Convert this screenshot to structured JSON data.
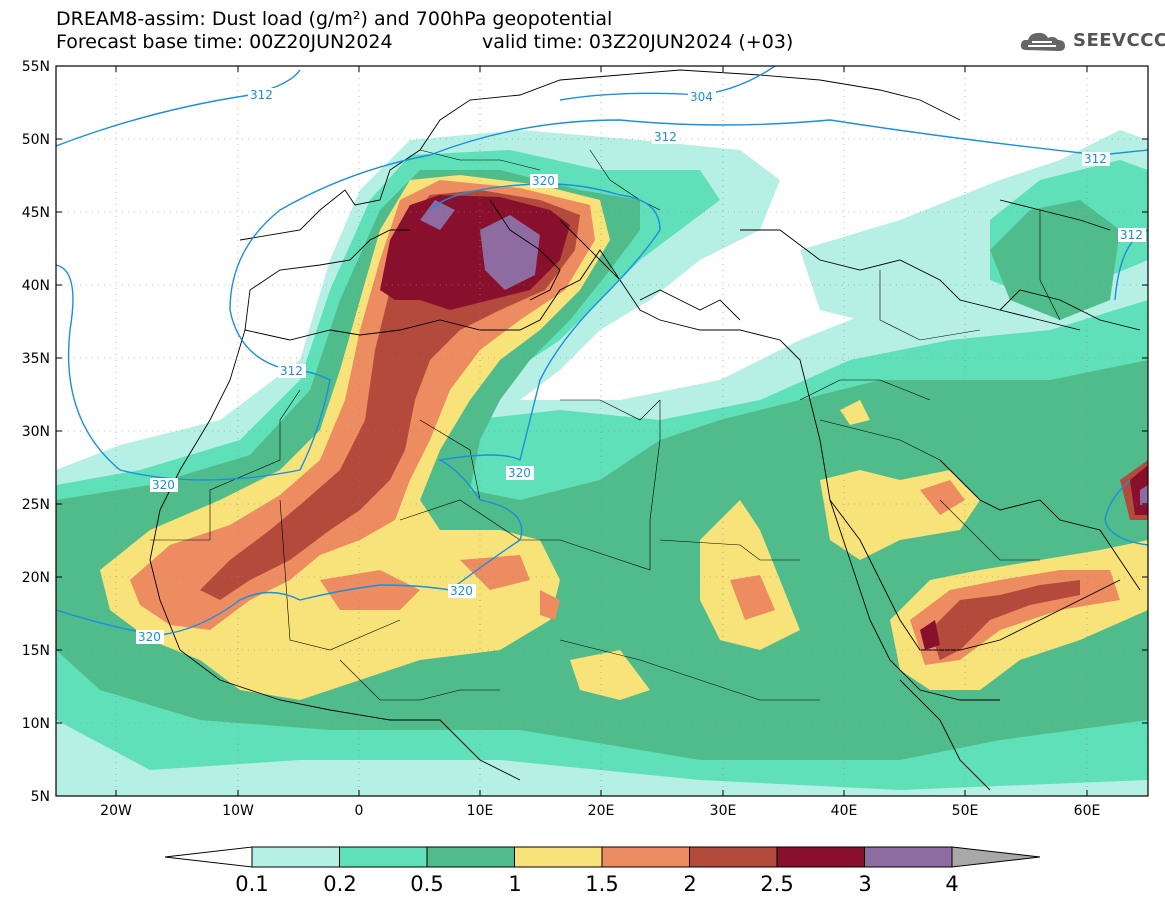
{
  "title_line1": "DREAM8-assim: Dust load (g/m²) and 700hPa geopotential",
  "title_line2": "Forecast base time: 00Z20JUN2024",
  "valid_time": "valid time: 03Z20JUN2024 (+03)",
  "logo": {
    "text": "SEEVCCC",
    "icon": "cloud-logo-icon"
  },
  "map": {
    "lat_labels": [
      "55N",
      "50N",
      "45N",
      "40N",
      "35N",
      "30N",
      "25N",
      "20N",
      "15N",
      "10N",
      "5N"
    ],
    "lon_labels": [
      "20W",
      "10W",
      "0",
      "10E",
      "20E",
      "30E",
      "40E",
      "50E",
      "60E"
    ],
    "contour_labels": [
      "312",
      "304",
      "312",
      "312",
      "312",
      "320",
      "312",
      "320",
      "320",
      "320",
      "320"
    ]
  },
  "colorbar": {
    "labels": [
      "0.1",
      "0.2",
      "0.5",
      "1",
      "1.5",
      "2",
      "2.5",
      "3",
      "4"
    ],
    "colors": [
      "#b6f0e4",
      "#5fe0b8",
      "#50bc8c",
      "#f8e37a",
      "#ec8c60",
      "#b44a3c",
      "#88102c",
      "#8e6ba0",
      "#a8a8a8"
    ]
  },
  "colors": {
    "c01": "#b6f0e4",
    "c02": "#5fe0b8",
    "c05": "#50bc8c",
    "c1": "#f8e37a",
    "c15": "#ec8c60",
    "c2": "#b44a3c",
    "c25": "#88102c",
    "c3": "#8e6ba0",
    "contour": "#1a8fe0"
  }
}
